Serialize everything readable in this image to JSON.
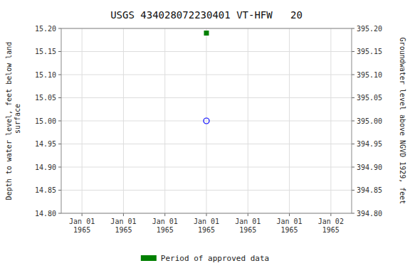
{
  "chart_data": {
    "type": "scatter",
    "title": "USGS 434028072230401 VT-HFW   20",
    "y_label": "Depth to water level, feet below land\n surface",
    "y2_label": "Groundwater level above NGVD 1929, feet",
    "categories": [
      "Jan 01\n1965",
      "Jan 01\n1965",
      "Jan 01\n1965",
      "Jan 01\n1965",
      "Jan 01\n1965",
      "Jan 01\n1965",
      "Jan 02\n1965"
    ],
    "series": [
      {
        "color": "blue",
        "marker": "open-circle",
        "values": [
          null,
          null,
          null,
          15,
          null,
          null,
          null
        ]
      },
      {
        "name": "Period of approved data",
        "color": "#008000",
        "marker": "square",
        "values": [
          null,
          null,
          null,
          15.19,
          null,
          null,
          null
        ]
      }
    ],
    "ylim": [
      15.2,
      14.8
    ],
    "yticks": [
      {
        "value": 14.8,
        "label": "14.80"
      },
      {
        "value": 14.85,
        "label": "14.85"
      },
      {
        "value": 14.9,
        "label": "14.90"
      },
      {
        "value": 14.95,
        "label": "14.95"
      },
      {
        "value": 15,
        "label": "15.00"
      },
      {
        "value": 15.05,
        "label": "15.05"
      },
      {
        "value": 15.1,
        "label": "15.10"
      },
      {
        "value": 15.15,
        "label": "15.15"
      },
      {
        "value": 15.2,
        "label": "15.20"
      }
    ],
    "y2lim": [
      394.8,
      395.2
    ],
    "y2ticks": [
      {
        "value": 394.8,
        "label": "394.80"
      },
      {
        "value": 394.85,
        "label": "394.85"
      },
      {
        "value": 394.9,
        "label": "394.90"
      },
      {
        "value": 394.95,
        "label": "394.95"
      },
      {
        "value": 395,
        "label": "395.00"
      },
      {
        "value": 395.05,
        "label": "395.05"
      },
      {
        "value": 395.1,
        "label": "395.10"
      },
      {
        "value": 395.15,
        "label": "395.15"
      },
      {
        "value": 395.2,
        "label": "395.20"
      }
    ],
    "grid": true,
    "legend": "bottom"
  }
}
